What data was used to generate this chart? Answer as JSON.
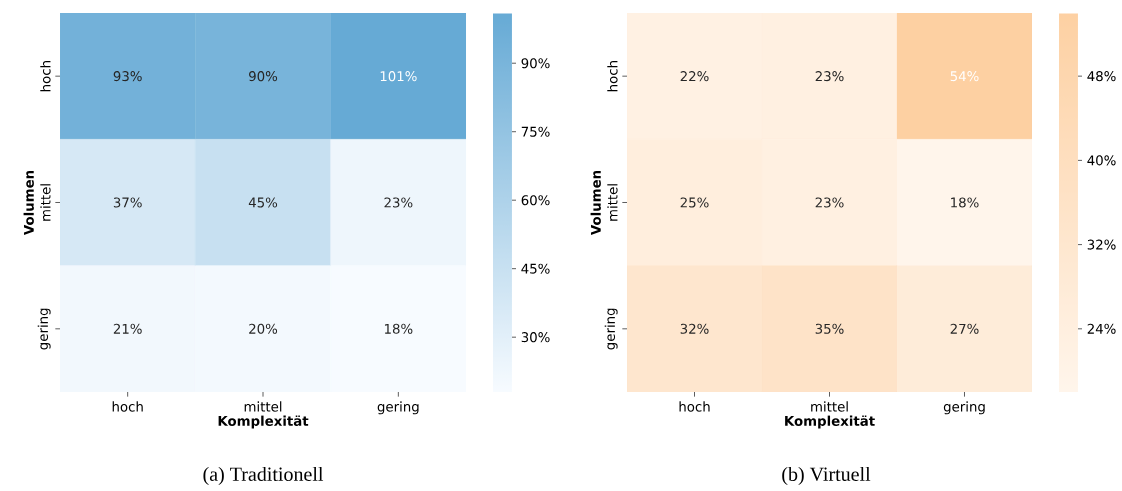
{
  "chart_data": [
    {
      "type": "heatmap",
      "title": "(a) Traditionell",
      "xlabel": "Komplexität",
      "ylabel": "Volumen",
      "categories": [
        "hoch",
        "mittel",
        "gering"
      ],
      "y_categories": [
        "hoch",
        "mittel",
        "gering"
      ],
      "cells": [
        [
          93,
          90,
          101
        ],
        [
          37,
          45,
          23
        ],
        [
          21,
          20,
          18
        ]
      ],
      "cell_labels": [
        [
          "93%",
          "90%",
          "101%"
        ],
        [
          "37%",
          "45%",
          "23%"
        ],
        [
          "21%",
          "20%",
          "18%"
        ]
      ],
      "clim": [
        18,
        101
      ],
      "cticks": [
        {
          "value": 30,
          "label": "30%"
        },
        {
          "value": 45,
          "label": "45%"
        },
        {
          "value": 60,
          "label": "60%"
        },
        {
          "value": 75,
          "label": "75%"
        },
        {
          "value": 90,
          "label": "90%"
        }
      ],
      "colors": [
        "#f7fbff",
        "#66aad5"
      ]
    },
    {
      "type": "heatmap",
      "title": "(b) Virtuell",
      "xlabel": "Komplexität",
      "ylabel": "Volumen",
      "categories": [
        "hoch",
        "mittel",
        "gering"
      ],
      "y_categories": [
        "hoch",
        "mittel",
        "gering"
      ],
      "cells": [
        [
          22,
          23,
          54
        ],
        [
          25,
          23,
          18
        ],
        [
          32,
          35,
          27
        ]
      ],
      "cell_labels": [
        [
          "22%",
          "23%",
          "54%"
        ],
        [
          "25%",
          "23%",
          "18%"
        ],
        [
          "32%",
          "35%",
          "27%"
        ]
      ],
      "clim": [
        18,
        54
      ],
      "cticks": [
        {
          "value": 24,
          "label": "24%"
        },
        {
          "value": 32,
          "label": "32%"
        },
        {
          "value": 40,
          "label": "40%"
        },
        {
          "value": 48,
          "label": "48%"
        }
      ],
      "colors": [
        "#fff5eb",
        "#fdd0a2"
      ]
    }
  ]
}
